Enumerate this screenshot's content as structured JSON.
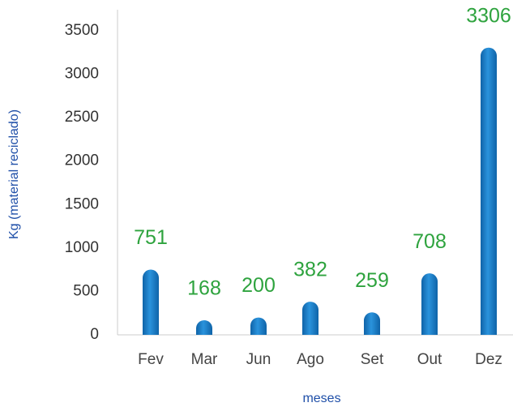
{
  "chart_data": {
    "type": "bar",
    "x_label": "meses",
    "y_label": "Kg (material reciclado)",
    "categories": [
      "Fev",
      "Mar",
      "Jun",
      "Ago",
      "Set",
      "Out",
      "Dez"
    ],
    "values": [
      751,
      168,
      200,
      382,
      259,
      708,
      3306
    ],
    "color": "#1a7fcc",
    "label_color": "#2ea33e",
    "ylim": [
      0,
      3500
    ],
    "yticks": [
      0,
      500,
      1000,
      1500,
      2000,
      2500,
      3000,
      3500
    ],
    "grid": false
  }
}
